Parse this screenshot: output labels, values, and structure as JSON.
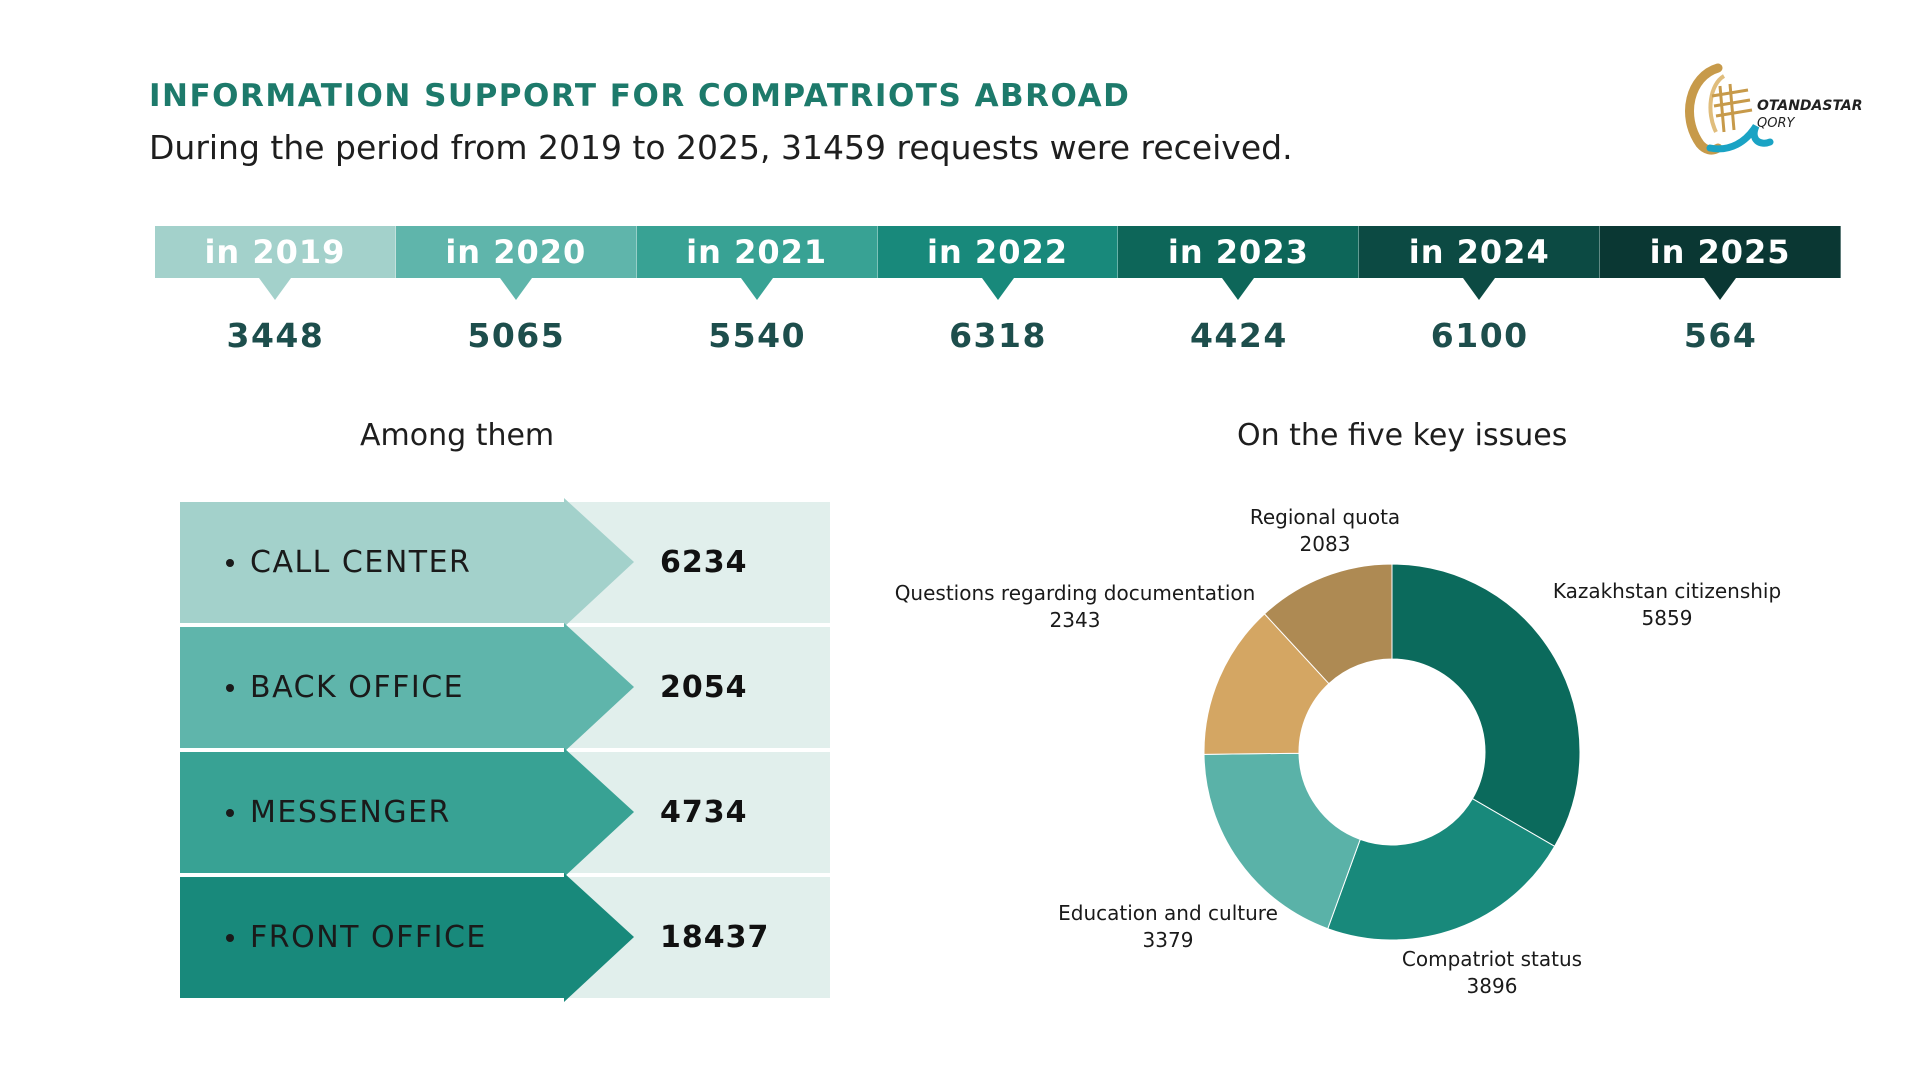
{
  "header": {
    "title": "INFORMATION SUPPORT FOR COMPATRIOTS ABROAD",
    "subtitle": "During the period from 2019 to 2025, 31459 requests were received."
  },
  "logo": {
    "line1": "OTANDASTAR",
    "line2": "QORY"
  },
  "timeline": {
    "colors": [
      "#a3d1cb",
      "#5fb5ab",
      "#38a294",
      "#18897b",
      "#0d6659",
      "#0c4a43",
      "#0a3733"
    ],
    "items": [
      {
        "label": "in 2019",
        "value": "3448"
      },
      {
        "label": "in 2020",
        "value": "5065"
      },
      {
        "label": "in 2021",
        "value": "5540"
      },
      {
        "label": "in 2022",
        "value": "6318"
      },
      {
        "label": "in 2023",
        "value": "4424"
      },
      {
        "label": "in 2024",
        "value": "6100"
      },
      {
        "label": "in 2025",
        "value": "564"
      }
    ]
  },
  "sections": {
    "left_heading": "Among them",
    "right_heading": "On the five key issues"
  },
  "channels": {
    "colors": [
      "#a3d1cb",
      "#5fb5ab",
      "#38a294",
      "#18897b"
    ],
    "items": [
      {
        "label": "CALL CENTER",
        "value": "6234"
      },
      {
        "label": "BACK OFFICE",
        "value": "2054"
      },
      {
        "label": "MESSENGER",
        "value": "4734"
      },
      {
        "label": "FRONT OFFICE",
        "value": "18437"
      }
    ]
  },
  "chart_data": {
    "type": "pie",
    "donut": true,
    "title": "On the five key issues",
    "slices": [
      {
        "label": "Kazakhstan citizenship",
        "value": 5859,
        "color": "#0b6a5c"
      },
      {
        "label": "Compatriot status",
        "value": 3896,
        "color": "#18897b"
      },
      {
        "label": "Education and culture",
        "value": 3379,
        "color": "#5ab2a8"
      },
      {
        "label": "Questions regarding documentation",
        "value": 2343,
        "color": "#d4a663"
      },
      {
        "label": "Regional quota",
        "value": 2083,
        "color": "#ae8a53"
      }
    ]
  }
}
